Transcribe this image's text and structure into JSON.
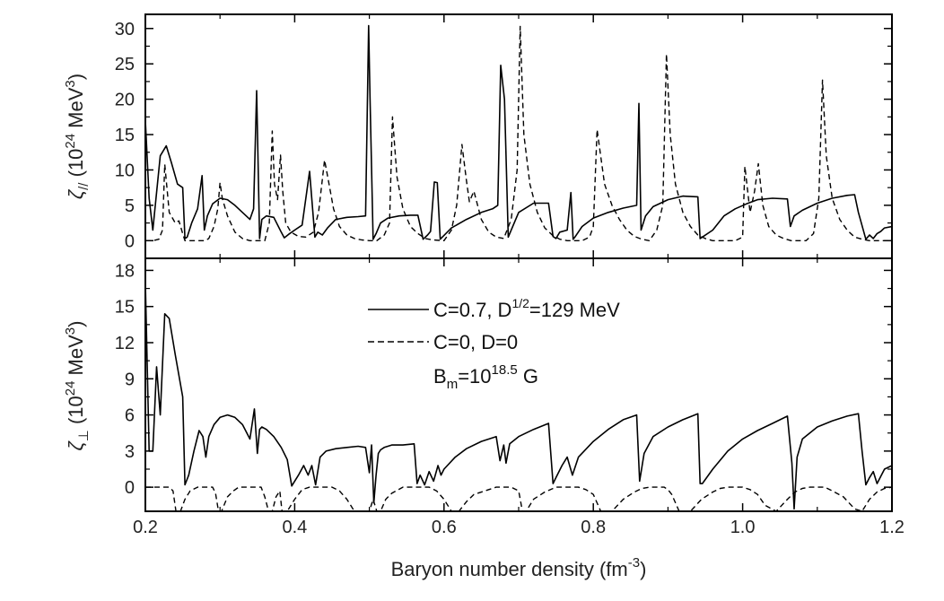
{
  "chart_data": [
    {
      "type": "line",
      "ylabel": {
        "main": "ζ",
        "sub": "//",
        "open": " (10",
        "sup": "24",
        "unit": " MeV",
        "unitsup": "3",
        "close": ")"
      },
      "xlim": [
        0.2,
        1.2
      ],
      "ylim": [
        -2.5,
        32
      ],
      "yticks": [
        0,
        5,
        10,
        15,
        20,
        25,
        30
      ],
      "grid": false,
      "series": [
        {
          "style": "solid",
          "x": [
            0.2,
            0.205,
            0.21,
            0.22,
            0.228,
            0.235,
            0.243,
            0.25,
            0.253,
            0.256,
            0.262,
            0.27,
            0.276,
            0.279,
            0.283,
            0.29,
            0.3,
            0.31,
            0.32,
            0.33,
            0.34,
            0.345,
            0.349,
            0.353,
            0.356,
            0.362,
            0.372,
            0.382,
            0.386,
            0.392,
            0.4,
            0.41,
            0.42,
            0.427,
            0.431,
            0.437,
            0.444,
            0.455,
            0.47,
            0.485,
            0.495,
            0.499,
            0.501,
            0.505,
            0.509,
            0.515,
            0.525,
            0.54,
            0.555,
            0.565,
            0.572,
            0.578,
            0.582,
            0.587,
            0.591,
            0.595,
            0.61,
            0.63,
            0.65,
            0.665,
            0.672,
            0.676,
            0.681,
            0.686,
            0.7,
            0.72,
            0.74,
            0.746,
            0.75,
            0.755,
            0.765,
            0.77,
            0.773,
            0.776,
            0.785,
            0.8,
            0.82,
            0.84,
            0.858,
            0.861,
            0.864,
            0.87,
            0.88,
            0.9,
            0.92,
            0.94,
            0.943,
            0.946,
            0.96,
            0.975,
            0.99,
            1.005,
            1.02,
            1.04,
            1.06,
            1.064,
            1.069,
            1.08,
            1.1,
            1.12,
            1.14,
            1.15,
            1.155,
            1.165,
            1.17,
            1.175,
            1.18,
            1.185,
            1.19,
            1.2
          ],
          "y": [
            17,
            6,
            1.5,
            12,
            13.4,
            11,
            8,
            7.5,
            0.3,
            0.5,
            2.5,
            4.5,
            9.2,
            1.5,
            3.5,
            5.2,
            6,
            5.8,
            5,
            4,
            3,
            4.5,
            21.2,
            0.3,
            3,
            3.5,
            3.3,
            1.2,
            0.4,
            0.9,
            1.5,
            2.2,
            9.8,
            0.5,
            1.2,
            0.8,
            1.8,
            3,
            3.3,
            3.4,
            3.5,
            30.4,
            20,
            0.2,
            1,
            2.5,
            3.2,
            3.5,
            3.6,
            3.6,
            0.2,
            0.8,
            1.3,
            8.3,
            8.2,
            0.2,
            1.8,
            3,
            4,
            4.5,
            5,
            24.8,
            20,
            0.5,
            4,
            5.3,
            5.3,
            0.6,
            0.3,
            1.2,
            1.5,
            6.8,
            0.2,
            0.6,
            2,
            3.2,
            4,
            4.6,
            5,
            19.4,
            1.5,
            3.5,
            4.8,
            5.8,
            6.3,
            6.2,
            0.3,
            0.5,
            1.5,
            3.5,
            4.5,
            5.2,
            5.8,
            6,
            5.9,
            2,
            3.5,
            4.3,
            5.3,
            6,
            6.4,
            6.5,
            4,
            0.2,
            0.8,
            0.3,
            1,
            1.3,
            1.8,
            2
          ]
        },
        {
          "style": "dashed",
          "x": [
            0.2,
            0.21,
            0.218,
            0.223,
            0.226,
            0.232,
            0.24,
            0.245,
            0.25,
            0.253,
            0.26,
            0.27,
            0.28,
            0.285,
            0.292,
            0.297,
            0.3,
            0.303,
            0.31,
            0.32,
            0.33,
            0.34,
            0.35,
            0.36,
            0.366,
            0.37,
            0.373,
            0.377,
            0.381,
            0.384,
            0.388,
            0.395,
            0.405,
            0.415,
            0.425,
            0.432,
            0.44,
            0.446,
            0.452,
            0.46,
            0.47,
            0.48,
            0.49,
            0.5,
            0.51,
            0.52,
            0.527,
            0.531,
            0.537,
            0.545,
            0.555,
            0.565,
            0.575,
            0.585,
            0.6,
            0.61,
            0.617,
            0.624,
            0.63,
            0.634,
            0.64,
            0.65,
            0.66,
            0.67,
            0.68,
            0.69,
            0.698,
            0.702,
            0.707,
            0.715,
            0.725,
            0.735,
            0.745,
            0.755,
            0.765,
            0.775,
            0.785,
            0.795,
            0.8,
            0.805,
            0.815,
            0.825,
            0.835,
            0.845,
            0.855,
            0.865,
            0.875,
            0.885,
            0.893,
            0.898,
            0.903,
            0.91,
            0.92,
            0.93,
            0.94,
            0.95,
            0.96,
            0.97,
            0.98,
            0.99,
            1.0,
            1.003,
            1.01,
            1.016,
            1.021,
            1.027,
            1.035,
            1.045,
            1.055,
            1.065,
            1.075,
            1.085,
            1.095,
            1.102,
            1.107,
            1.112,
            1.12,
            1.13,
            1.14,
            1.15,
            1.16,
            1.17,
            1.18,
            1.19,
            1.2
          ],
          "y": [
            0,
            0,
            0.2,
            1.5,
            10.8,
            4,
            2.5,
            2.8,
            1,
            0,
            0,
            0,
            0,
            0.3,
            2,
            4.5,
            8.2,
            6,
            3.5,
            1.2,
            0.3,
            0,
            0,
            0,
            2.5,
            15.5,
            8,
            5.8,
            12.1,
            7,
            2.5,
            1.2,
            0.6,
            0.5,
            1.2,
            4,
            11.4,
            8,
            4.5,
            2,
            0.8,
            0.3,
            0.1,
            0,
            0,
            0.8,
            2.5,
            17.5,
            9,
            4.5,
            2,
            1,
            0.3,
            0.1,
            0,
            1.5,
            5,
            13.6,
            8.5,
            5.5,
            7,
            3,
            1.2,
            0.5,
            0.3,
            3,
            10,
            30.3,
            15,
            8,
            4,
            1.8,
            0.8,
            0.2,
            0,
            0,
            0,
            0.5,
            2,
            15.7,
            8,
            5,
            3,
            1.5,
            0.6,
            0.2,
            0,
            1.5,
            5,
            26.4,
            15,
            8,
            4,
            2,
            0.8,
            0.3,
            0,
            0,
            0,
            0,
            0.5,
            10.5,
            4,
            7,
            10.9,
            5,
            2,
            0.8,
            0.3,
            0,
            0,
            0,
            1,
            6,
            22.7,
            12,
            6,
            3,
            1.5,
            0.5,
            0.2,
            0,
            0,
            0,
            0
          ]
        }
      ]
    },
    {
      "type": "line",
      "xlabel": {
        "text": "Baryon number density (fm",
        "sup": "-3",
        "close": ")"
      },
      "ylabel": {
        "main": "ζ",
        "sub": "⊥",
        "open": " (10",
        "sup": "24",
        "unit": " MeV",
        "unitsup": "3",
        "close": ")"
      },
      "xlim": [
        0.2,
        1.2
      ],
      "ylim": [
        -2,
        19
      ],
      "xticks": [
        0.2,
        0.4,
        0.6,
        0.8,
        1.0,
        1.2
      ],
      "xticklabels": [
        "0.2",
        "0.4",
        "0.6",
        "0.8",
        "1.0",
        "1.2"
      ],
      "yticks": [
        0,
        3,
        6,
        9,
        12,
        15,
        18
      ],
      "grid": false,
      "legend": {
        "placement": "top-center",
        "entries": [
          {
            "style": "solid",
            "text": "C=0.7, D",
            "sup": "1/2",
            "after": "=129 MeV"
          },
          {
            "style": "dashed",
            "text": "C=0, D=0"
          }
        ],
        "annotation": {
          "main": "B",
          "sub": "m",
          "mid": "=10",
          "sup": "18.5",
          "after": " G"
        }
      },
      "series": [
        {
          "style": "solid",
          "x": [
            0.2,
            0.205,
            0.21,
            0.215,
            0.22,
            0.226,
            0.232,
            0.24,
            0.25,
            0.253,
            0.258,
            0.265,
            0.272,
            0.277,
            0.281,
            0.285,
            0.292,
            0.3,
            0.31,
            0.32,
            0.33,
            0.34,
            0.346,
            0.35,
            0.353,
            0.356,
            0.362,
            0.372,
            0.382,
            0.39,
            0.396,
            0.4,
            0.405,
            0.412,
            0.418,
            0.423,
            0.428,
            0.434,
            0.442,
            0.455,
            0.47,
            0.485,
            0.495,
            0.5,
            0.503,
            0.506,
            0.509,
            0.512,
            0.515,
            0.52,
            0.53,
            0.545,
            0.56,
            0.564,
            0.568,
            0.574,
            0.58,
            0.586,
            0.592,
            0.596,
            0.6,
            0.615,
            0.63,
            0.65,
            0.67,
            0.675,
            0.68,
            0.683,
            0.688,
            0.7,
            0.72,
            0.74,
            0.746,
            0.75,
            0.758,
            0.765,
            0.772,
            0.78,
            0.8,
            0.82,
            0.84,
            0.858,
            0.862,
            0.868,
            0.88,
            0.9,
            0.92,
            0.94,
            0.943,
            0.946,
            0.96,
            0.98,
            1.0,
            1.02,
            1.04,
            1.06,
            1.066,
            1.069,
            1.073,
            1.08,
            1.1,
            1.12,
            1.14,
            1.155,
            1.16,
            1.165,
            1.17,
            1.175,
            1.18,
            1.185,
            1.19,
            1.2
          ],
          "y": [
            17,
            3,
            3,
            10,
            6,
            14.4,
            14,
            11,
            7.5,
            0.2,
            1,
            3,
            4.7,
            4.2,
            2.5,
            4.2,
            5.2,
            5.8,
            6,
            5.8,
            5.2,
            4,
            6.5,
            2.8,
            4.8,
            5,
            4.8,
            4.2,
            3.3,
            2.3,
            0.1,
            0.5,
            1,
            1.8,
            1,
            1.8,
            0.2,
            2.5,
            3,
            3.2,
            3.3,
            3.4,
            3.3,
            1.2,
            3.5,
            -1.3,
            1,
            2.8,
            3.1,
            3.3,
            3.5,
            3.5,
            3.6,
            0.3,
            1,
            0.2,
            1.3,
            0.5,
            1.8,
            1,
            1.5,
            2.5,
            3.2,
            3.8,
            4.2,
            2.2,
            3.5,
            2,
            3.6,
            4.2,
            4.8,
            5.3,
            0.3,
            0.8,
            1.8,
            2.5,
            1,
            2.5,
            3.8,
            4.8,
            5.6,
            6,
            0.5,
            2.8,
            4.2,
            5,
            5.6,
            6.1,
            0.3,
            0.3,
            1.5,
            3,
            4,
            4.7,
            5.3,
            5.9,
            2,
            -1.8,
            2.5,
            4,
            5,
            5.5,
            5.9,
            6.1,
            3,
            0.2,
            0.8,
            1.3,
            0.3,
            0.9,
            1.5,
            1.8
          ]
        },
        {
          "style": "dashed",
          "x": [
            0.2,
            0.205,
            0.21,
            0.215,
            0.22,
            0.226,
            0.232,
            0.237,
            0.241,
            0.247,
            0.253,
            0.26,
            0.27,
            0.28,
            0.29,
            0.294,
            0.298,
            0.302,
            0.31,
            0.318,
            0.325,
            0.335,
            0.345,
            0.355,
            0.36,
            0.365,
            0.37,
            0.375,
            0.38,
            0.383,
            0.39,
            0.4,
            0.41,
            0.42,
            0.43,
            0.44,
            0.45,
            0.46,
            0.47,
            0.48,
            0.49,
            0.5,
            0.505,
            0.51,
            0.515,
            0.522,
            0.53,
            0.545,
            0.56,
            0.57,
            0.58,
            0.59,
            0.6,
            0.61,
            0.62,
            0.63,
            0.64,
            0.655,
            0.67,
            0.68,
            0.69,
            0.7,
            0.705,
            0.71,
            0.72,
            0.735,
            0.75,
            0.76,
            0.77,
            0.78,
            0.79,
            0.8,
            0.81,
            0.825,
            0.84,
            0.855,
            0.865,
            0.875,
            0.885,
            0.895,
            0.9,
            0.905,
            0.915,
            0.93,
            0.945,
            0.96,
            0.97,
            0.98,
            0.99,
            1.0,
            1.01,
            1.02,
            1.03,
            1.045,
            1.06,
            1.07,
            1.08,
            1.09,
            1.1,
            1.11,
            1.12,
            1.135,
            1.15,
            1.16,
            1.17,
            1.18,
            1.19,
            1.2
          ],
          "y": [
            0,
            0,
            0,
            0,
            0,
            0,
            0,
            -0.3,
            -2,
            -2,
            -1,
            -0.3,
            0,
            0,
            0,
            -0.5,
            -2,
            -2,
            -0.8,
            -0.3,
            0,
            0,
            0,
            0,
            -0.8,
            -2,
            -2,
            -0.8,
            -0.3,
            -2,
            -2,
            -1,
            -0.2,
            0,
            0,
            0,
            0,
            -0.3,
            -1,
            -2,
            -2,
            -2,
            -1,
            -2,
            -2,
            -1,
            -0.5,
            0,
            0,
            0,
            0,
            -0.3,
            -1,
            -2,
            -2,
            -1.2,
            -0.6,
            -0.3,
            0,
            0,
            0,
            -0.3,
            -2,
            -2,
            -1,
            -0.4,
            0,
            0,
            0,
            0,
            -0.2,
            -0.6,
            -2,
            -2,
            -1,
            -0.4,
            -0.1,
            0,
            0,
            0,
            -0.2,
            -0.6,
            -2,
            -2,
            -1,
            -0.4,
            -0.1,
            0,
            0,
            0,
            -0.2,
            -0.6,
            -1.5,
            -2,
            -1,
            -0.4,
            -0.1,
            0,
            0,
            0,
            -0.3,
            -0.8,
            -1.8,
            -2,
            -1,
            -0.4,
            -0.1,
            0
          ]
        }
      ]
    }
  ]
}
